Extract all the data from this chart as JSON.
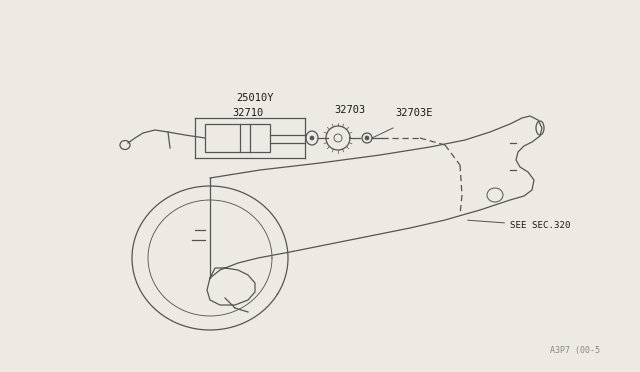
{
  "bg_color": "#edeae4",
  "line_color": "#555555",
  "footer_text": "A3P7 (00-5",
  "see_sec_label": "SEE SEC.320",
  "label_25010Y": "25010Y",
  "label_32703": "32703",
  "label_32710": "32710",
  "label_32703E": "32703E"
}
